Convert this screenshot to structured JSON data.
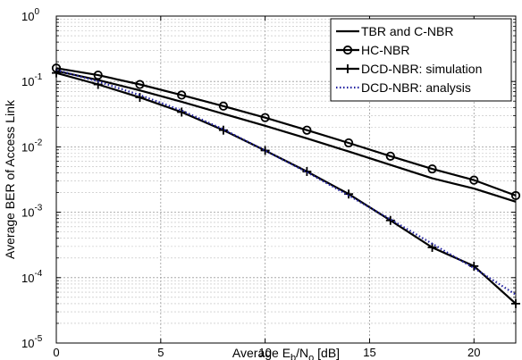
{
  "chart_data": {
    "type": "line",
    "xlabel": "Average E_b/N_o [dB]",
    "xlabel_parts": {
      "prefix": "Average E",
      "sub1": "b",
      "mid": "/N",
      "sub2": "o",
      "suffix": " [dB]"
    },
    "ylabel": "Average BER of Access Link",
    "xlim": [
      0,
      22
    ],
    "ylim": [
      1e-05,
      1
    ],
    "yscale": "log",
    "grid": true,
    "legend_position": "top-right",
    "x_ticks": [
      0,
      5,
      10,
      15,
      20
    ],
    "y_ticks": [
      {
        "base": "10",
        "exp": "0",
        "value": 1
      },
      {
        "base": "10",
        "exp": "-1",
        "value": 0.1
      },
      {
        "base": "10",
        "exp": "-2",
        "value": 0.01
      },
      {
        "base": "10",
        "exp": "-3",
        "value": 0.001
      },
      {
        "base": "10",
        "exp": "-4",
        "value": 0.0001
      },
      {
        "base": "10",
        "exp": "-5",
        "value": 1e-05
      }
    ],
    "series": [
      {
        "name": "TBR and C-NBR",
        "color": "#000000",
        "line": "solid",
        "marker": "none",
        "x": [
          0,
          2,
          4,
          6,
          8,
          10,
          12,
          14,
          16,
          18,
          20,
          22
        ],
        "y": [
          0.145,
          0.105,
          0.073,
          0.049,
          0.032,
          0.021,
          0.0135,
          0.0085,
          0.0053,
          0.0033,
          0.0023,
          0.00145
        ]
      },
      {
        "name": "HC-NBR",
        "color": "#000000",
        "line": "solid",
        "marker": "circle",
        "x": [
          0,
          2,
          4,
          6,
          8,
          10,
          12,
          14,
          16,
          18,
          20,
          22
        ],
        "y": [
          0.16,
          0.125,
          0.09,
          0.062,
          0.042,
          0.028,
          0.018,
          0.0115,
          0.0072,
          0.0046,
          0.0031,
          0.0018
        ]
      },
      {
        "name": "DCD-NBR: simulation",
        "color": "#000000",
        "line": "solid",
        "marker": "plus",
        "x": [
          0,
          2,
          4,
          6,
          8,
          10,
          12,
          14,
          16,
          18,
          20,
          22
        ],
        "y": [
          0.135,
          0.09,
          0.057,
          0.034,
          0.018,
          0.0088,
          0.0042,
          0.0019,
          0.00075,
          0.00029,
          0.00015,
          4e-05
        ]
      },
      {
        "name": "DCD-NBR: analysis",
        "color": "#2020a0",
        "line": "dotted",
        "marker": "none",
        "x": [
          0,
          2,
          4,
          6,
          8,
          10,
          12,
          14,
          16,
          18,
          20,
          22
        ],
        "y": [
          0.15,
          0.1,
          0.062,
          0.036,
          0.0185,
          0.0088,
          0.0041,
          0.0018,
          0.00078,
          0.00033,
          0.00014,
          5.5e-05
        ]
      }
    ]
  }
}
